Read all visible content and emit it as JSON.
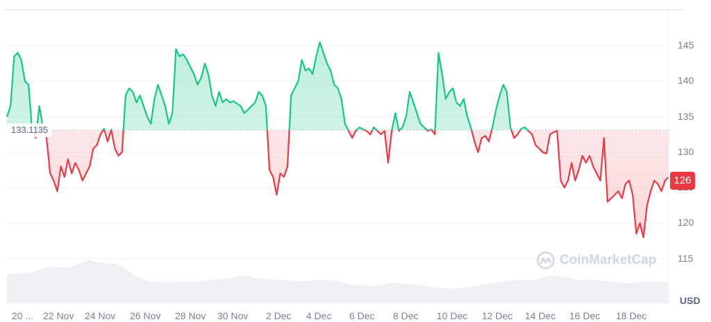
{
  "chart_data": {
    "type": "area",
    "title": "",
    "currency_label": "USD",
    "watermark": "CoinMarketCap",
    "baseline": {
      "value": 133.1135,
      "label": "133.1135"
    },
    "current_price": {
      "value": 126,
      "label": "126"
    },
    "colors": {
      "up": "#16c784",
      "down": "#ea3943",
      "grid": "#eff2f5",
      "volume": "#eff0f4",
      "axis_text": "#7a8196"
    },
    "ylim": [
      110,
      150
    ],
    "yticks": [
      145,
      140,
      135,
      130,
      125,
      120,
      115
    ],
    "xticks": [
      "20 ...",
      "22 Nov",
      "24 Nov",
      "26 Nov",
      "28 Nov",
      "30 Nov",
      "2 Dec",
      "4 Dec",
      "6 Dec",
      "8 Dec",
      "10 Dec",
      "12 Dec",
      "14 Dec",
      "16 Dec",
      "18 Dec"
    ],
    "xlabel": "",
    "ylabel": "USD",
    "grid": true,
    "series": [
      {
        "name": "price",
        "x_start": "20 Nov",
        "values": [
          135.0,
          136.5,
          143.5,
          144.0,
          143.0,
          140.0,
          139.5,
          133.0,
          132.0,
          136.5,
          133.5,
          132.0,
          127.0,
          126.0,
          124.5,
          128.0,
          126.5,
          129.0,
          127.0,
          128.5,
          127.5,
          126.0,
          127.0,
          128.0,
          130.5,
          131.0,
          132.5,
          133.3,
          131.5,
          133.2,
          130.5,
          129.5,
          130.0,
          138.0,
          139.0,
          138.5,
          137.0,
          138.0,
          136.5,
          135.0,
          134.0,
          137.5,
          139.5,
          138.0,
          136.5,
          134.0,
          135.5,
          144.5,
          143.5,
          143.8,
          143.0,
          142.0,
          141.0,
          139.5,
          140.5,
          142.5,
          141.0,
          138.0,
          136.5,
          138.5,
          137.0,
          137.5,
          137.0,
          137.2,
          136.8,
          136.5,
          135.5,
          136.0,
          136.5,
          137.0,
          138.5,
          138.0,
          136.5,
          127.5,
          126.5,
          124.0,
          127.0,
          126.5,
          128.0,
          138.0,
          139.0,
          140.0,
          143.0,
          141.5,
          141.8,
          141.0,
          143.5,
          145.5,
          144.0,
          142.5,
          141.5,
          139.5,
          139.0,
          137.5,
          134.0,
          133.0,
          132.0,
          133.0,
          133.5,
          133.2,
          133.0,
          132.5,
          133.5,
          133.0,
          132.5,
          133.0,
          128.5,
          133.0,
          135.5,
          133.0,
          133.5,
          135.0,
          138.5,
          137.0,
          135.5,
          134.0,
          133.5,
          133.0,
          133.2,
          132.5,
          144.0,
          141.0,
          137.5,
          138.5,
          139.0,
          137.0,
          136.5,
          137.5,
          135.0,
          133.5,
          131.5,
          130.0,
          132.0,
          132.3,
          131.5,
          133.5,
          136.0,
          138.0,
          139.5,
          138.5,
          133.5,
          132.0,
          132.5,
          133.3,
          133.5,
          133.0,
          132.5,
          131.0,
          130.5,
          130.0,
          129.8,
          132.5,
          132.8,
          133.0,
          126.0,
          125.0,
          126.0,
          128.5,
          126.0,
          127.5,
          129.5,
          128.5,
          129.5,
          128.0,
          127.0,
          126.0,
          132.0,
          123.0,
          123.5,
          124.0,
          124.5,
          123.5,
          125.5,
          126.0,
          124.0,
          118.5,
          120.0,
          118.0,
          122.5,
          124.5,
          126.0,
          125.5,
          124.5,
          126.0,
          126.5
        ]
      }
    ],
    "volume_series": {
      "name": "volume",
      "values": [
        44,
        45,
        46,
        48,
        52,
        56,
        55,
        54,
        60,
        66,
        63,
        61,
        60,
        55,
        45,
        38,
        34,
        32,
        32,
        32,
        33,
        33,
        34,
        36,
        37,
        38,
        42,
        41,
        38,
        37,
        36,
        35,
        34,
        34,
        34,
        36,
        35,
        34,
        30,
        28,
        27,
        26,
        28,
        31,
        30,
        29,
        28,
        26,
        24,
        23,
        22,
        24,
        25,
        28,
        30,
        32,
        34,
        35,
        36,
        35,
        40,
        42,
        41,
        38,
        35,
        36,
        35,
        34,
        32,
        31,
        31,
        32,
        33,
        34,
        32
      ]
    }
  }
}
